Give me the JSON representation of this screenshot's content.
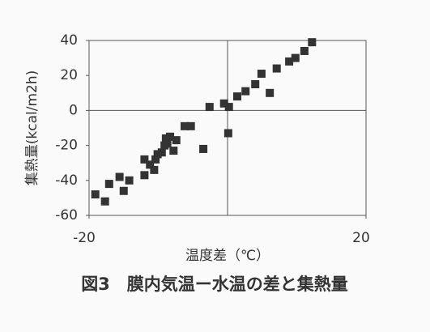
{
  "chart_data": {
    "type": "scatter",
    "x_label": "温度差（℃）",
    "y_label": "集熱量(kcal/m2h)",
    "caption": "図3　膜内気温ー水温の差と集熱量",
    "color": "#333333",
    "xlim": [
      -20,
      20
    ],
    "xticks": [
      -20,
      20
    ],
    "ylim": [
      -60,
      40
    ],
    "yticks": [
      -60,
      -40,
      -20,
      0,
      20,
      40
    ],
    "x": [
      12.2,
      11.1,
      9.8,
      8.9,
      7.1,
      4.9,
      6.1,
      4.0,
      2.6,
      1.4,
      -0.5,
      0.2,
      -2.6,
      0.1,
      -5.3,
      -6.2,
      -3.5,
      -7.4,
      -8.3,
      -8.9,
      -8.7,
      -7.8,
      -9.1,
      -9.5,
      -10.1,
      -10.4,
      -11.2,
      -12.0,
      -12.0,
      -10.6,
      -14.2,
      -15.6,
      -15.0,
      -17.1,
      -17.7,
      -19.1
    ],
    "y": [
      39,
      34,
      30,
      28,
      24,
      21,
      10,
      15,
      11,
      8,
      4,
      2,
      2,
      -13,
      -9,
      -9,
      -22,
      -17,
      -15,
      -16,
      -19,
      -23,
      -20,
      -24,
      -25,
      -28,
      -31,
      -28,
      -37,
      -34,
      -40,
      -38,
      -46,
      -42,
      -52,
      -48
    ]
  }
}
